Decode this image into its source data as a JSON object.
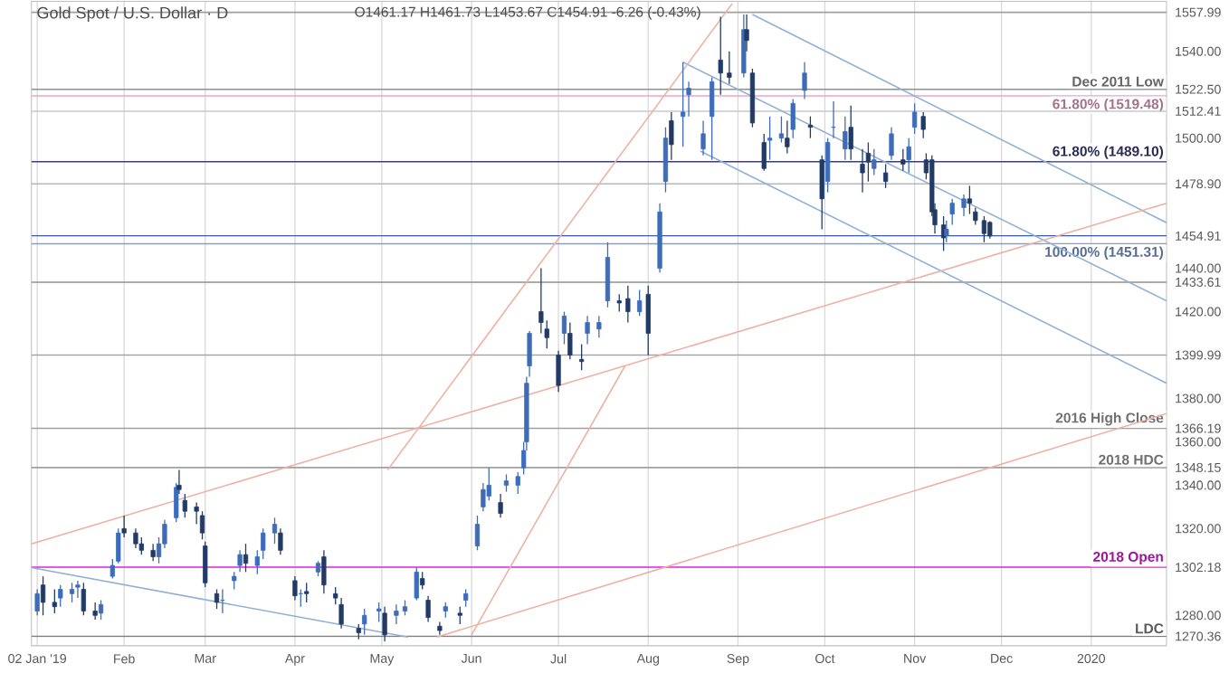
{
  "chart_data": {
    "type": "candlestick",
    "title": "Gold Spot / U.S. Dollar · D",
    "subtitle": "O1461.17 H1461.73 L1453.67 C1454.91 -6.26 (-0.43%)",
    "xlim": [
      "2018-12-31",
      "2020-01-27"
    ],
    "ylim": [
      1266,
      1563
    ],
    "xticks": [
      {
        "value": "2019-01-02",
        "label": "02 Jan '19"
      },
      {
        "value": "2019-02-01",
        "label": "Feb"
      },
      {
        "value": "2019-03-01",
        "label": "Mar"
      },
      {
        "value": "2019-04-01",
        "label": "Apr"
      },
      {
        "value": "2019-05-01",
        "label": "May"
      },
      {
        "value": "2019-06-01",
        "label": "Jun"
      },
      {
        "value": "2019-07-01",
        "label": "Jul"
      },
      {
        "value": "2019-08-01",
        "label": "Aug"
      },
      {
        "value": "2019-09-01",
        "label": "Sep"
      },
      {
        "value": "2019-10-01",
        "label": "Oct"
      },
      {
        "value": "2019-11-01",
        "label": "Nov"
      },
      {
        "value": "2019-12-01",
        "label": "Dec"
      },
      {
        "value": "2020-01-01",
        "label": "2020"
      }
    ],
    "yticks": [
      {
        "value": 1557.99,
        "label": "1557.99"
      },
      {
        "value": 1540,
        "label": "1540.00"
      },
      {
        "value": 1522.5,
        "label": "1522.50"
      },
      {
        "value": 1512.41,
        "label": "1512.41"
      },
      {
        "value": 1500,
        "label": "1500.00"
      },
      {
        "value": 1478.9,
        "label": "1478.90"
      },
      {
        "value": 1454.91,
        "label": "1454.91"
      },
      {
        "value": 1440,
        "label": "1440.00"
      },
      {
        "value": 1433.61,
        "label": "1433.61"
      },
      {
        "value": 1420,
        "label": "1420.00"
      },
      {
        "value": 1399.99,
        "label": "1399.99"
      },
      {
        "value": 1380,
        "label": "1380.00"
      },
      {
        "value": 1366.19,
        "label": "1366.19"
      },
      {
        "value": 1360,
        "label": "1360.00"
      },
      {
        "value": 1348.15,
        "label": "1348.15"
      },
      {
        "value": 1340,
        "label": "1340.00"
      },
      {
        "value": 1320,
        "label": "1320.00"
      },
      {
        "value": 1302.18,
        "label": "1302.18"
      },
      {
        "value": 1280,
        "label": "1280.00"
      },
      {
        "value": 1270.36,
        "label": "1270.36"
      }
    ],
    "grid": "x",
    "ref_lines": [
      {
        "axis": "y",
        "value": 1557.99,
        "color": "#a0a0a0"
      },
      {
        "axis": "y",
        "value": 1522.5,
        "label": "Dec 2011 Low",
        "color": "#909090"
      },
      {
        "axis": "y",
        "value": 1519.48,
        "label": "61.80% (1519.48)",
        "color": "#e9a6c4"
      },
      {
        "axis": "y",
        "value": 1512.41,
        "color": "#c8c8c8"
      },
      {
        "axis": "y",
        "value": 1489.1,
        "label": "61.80% (1489.10)",
        "color": "#3e3e78"
      },
      {
        "axis": "y",
        "value": 1478.9,
        "color": "#b8b8b8"
      },
      {
        "axis": "y",
        "value": 1454.91,
        "color": "#3c5aa8"
      },
      {
        "axis": "y",
        "value": 1451.31,
        "label": "100.00% (1451.31)",
        "color": "#7f9fd0"
      },
      {
        "axis": "y",
        "value": 1433.61,
        "color": "#909090"
      },
      {
        "axis": "y",
        "value": 1399.99,
        "color": "#a0a0a0"
      },
      {
        "axis": "y",
        "value": 1366.19,
        "label": "2016 High Close",
        "color": "#a0a0a0"
      },
      {
        "axis": "y",
        "value": 1348.15,
        "label": "2018 HDC",
        "color": "#a0a0a0"
      },
      {
        "axis": "y",
        "value": 1302.18,
        "label": "2018 Open",
        "color": "#e020e0"
      },
      {
        "axis": "y",
        "value": 1270.36,
        "label": "LDC",
        "color": "#808080"
      }
    ],
    "series": [
      {
        "type": "line",
        "color": "#8fb0d6",
        "x": [
          "2019-09-06",
          "2020-01-27"
        ],
        "values": [
          1557,
          1461
        ]
      },
      {
        "type": "line",
        "color": "#8fb0d6",
        "x": [
          "2019-08-13",
          "2020-01-27"
        ],
        "values": [
          1535,
          1425
        ]
      },
      {
        "type": "line",
        "color": "#8fb0d6",
        "x": [
          "2019-08-19",
          "2020-01-27"
        ],
        "values": [
          1494,
          1387
        ]
      },
      {
        "type": "line",
        "color": "#8fb0d6",
        "x": [
          "2018-12-31",
          "2019-05-10"
        ],
        "values": [
          1302,
          1270
        ]
      },
      {
        "type": "line",
        "color": "#eeb0a0",
        "x": [
          "2018-12-31",
          "2020-01-27"
        ],
        "values": [
          1313,
          1470
        ]
      },
      {
        "type": "line",
        "color": "#eeb0a0",
        "x": [
          "2019-05-20",
          "2020-01-27"
        ],
        "values": [
          1270,
          1373
        ]
      },
      {
        "type": "line",
        "color": "#eeb0a0",
        "x": [
          "2019-05-03",
          "2019-08-30"
        ],
        "values": [
          1347,
          1562
        ]
      },
      {
        "type": "line",
        "color": "#eeb0a0",
        "x": [
          "2019-06-01",
          "2019-07-24"
        ],
        "values": [
          1271,
          1395
        ]
      },
      {
        "colors": [
          "#3d6cb9",
          "#223b66",
          "#223b66",
          "#3d6cb9",
          "#3d6cb9",
          "#3d6cb9",
          "#223b66",
          "#223b66",
          "#3d6cb9",
          "#3d6cb9",
          "#3d6cb9",
          "#223b66",
          "#223b66",
          "#223b66",
          "#223b66",
          "#3d6cb9",
          "#3d6cb9",
          "#3d6cb9",
          "#223b66",
          "#223b66",
          "#223b66",
          "#223b66",
          "#223b66",
          "#223b66",
          "#3d6cb9",
          "#3d6cb9",
          "#3d6cb9",
          "#223b66",
          "#3d6cb9",
          "#3d6cb9",
          "#3d6cb9",
          "#223b66",
          "#223b66",
          "#3d6cb9",
          "#223b66",
          "#3d6cb9",
          "#223b66",
          "#223b66",
          "#223b66",
          "#223b66",
          "#3d6cb9",
          "#3d6cb9",
          "#223b66",
          "#3d6cb9",
          "#3d6cb9",
          "#3d6cb9",
          "#223b66",
          "#223b66",
          "#223b66",
          "#3d6cb9",
          "#223b66",
          "#3d6cb9",
          "#3d6cb9",
          "#3d6cb9",
          "#3d6cb9",
          "#223b66",
          "#3d6cb9",
          "#3d6cb9",
          "#3d6cb9",
          "#3d6cb9",
          "#3d6cb9",
          "#223b66",
          "#223b66",
          "#223b66",
          "#3d6cb9",
          "#223b66",
          "#223b66",
          "#3d6cb9",
          "#3d6cb9",
          "#3d6cb9",
          "#223b66",
          "#223b66",
          "#3d6cb9",
          "#223b66",
          "#3d6cb9",
          "#3d6cb9",
          "#223b66",
          "#3d6cb9",
          "#3d6cb9",
          "#3d6cb9",
          "#3d6cb9",
          "#223b66",
          "#223b66",
          "#3d6cb9",
          "#223b66",
          "#223b66",
          "#223b66",
          "#3d6cb9",
          "#3d6cb9",
          "#223b66",
          "#3d6cb9",
          "#3d6cb9",
          "#223b66",
          "#223b66",
          "#3d6cb9",
          "#3d6cb9",
          "#3d6cb9",
          "#223b66",
          "#223b66",
          "#223b66",
          "#3d6cb9",
          "#223b66",
          "#3d6cb9",
          "#223b66",
          "#3d6cb9",
          "#3d6cb9",
          "#223b66",
          "#223b66",
          "#223b66",
          "#223b66",
          "#223b66",
          "#3d6cb9",
          "#3d6cb9",
          "#3d6cb9",
          "#223b66",
          "#223b66",
          "#223b66",
          "#223b66"
        ],
        "x": [
          "2019-01-02",
          "2019-01-04",
          "2019-01-08",
          "2019-01-10",
          "2019-01-14",
          "2019-01-16",
          "2019-01-18",
          "2019-01-22",
          "2019-01-24",
          "2019-01-28",
          "2019-01-30",
          "2019-02-01",
          "2019-02-05",
          "2019-02-07",
          "2019-02-11",
          "2019-02-13",
          "2019-02-15",
          "2019-02-19",
          "2019-02-20",
          "2019-02-22",
          "2019-02-26",
          "2019-02-28",
          "2019-03-01",
          "2019-03-05",
          "2019-03-07",
          "2019-03-11",
          "2019-03-13",
          "2019-03-15",
          "2019-03-19",
          "2019-03-21",
          "2019-03-25",
          "2019-03-27",
          "2019-04-01",
          "2019-04-03",
          "2019-04-05",
          "2019-04-09",
          "2019-04-11",
          "2019-04-15",
          "2019-04-17",
          "2019-04-23",
          "2019-04-25",
          "2019-04-30",
          "2019-05-02",
          "2019-05-06",
          "2019-05-09",
          "2019-05-13",
          "2019-05-15",
          "2019-05-17",
          "2019-05-21",
          "2019-05-23",
          "2019-05-28",
          "2019-05-30",
          "2019-06-03",
          "2019-06-05",
          "2019-06-07",
          "2019-06-11",
          "2019-06-13",
          "2019-06-17",
          "2019-06-19",
          "2019-06-20",
          "2019-06-21",
          "2019-06-25",
          "2019-06-27",
          "2019-07-01",
          "2019-07-03",
          "2019-07-05",
          "2019-07-09",
          "2019-07-11",
          "2019-07-15",
          "2019-07-18",
          "2019-07-22",
          "2019-07-25",
          "2019-07-29",
          "2019-08-01",
          "2019-08-05",
          "2019-08-07",
          "2019-08-09",
          "2019-08-13",
          "2019-08-15",
          "2019-08-20",
          "2019-08-23",
          "2019-08-26",
          "2019-08-29",
          "2019-09-03",
          "2019-09-04",
          "2019-09-06",
          "2019-09-10",
          "2019-09-12",
          "2019-09-16",
          "2019-09-18",
          "2019-09-20",
          "2019-09-24",
          "2019-09-26",
          "2019-09-30",
          "2019-10-02",
          "2019-10-04",
          "2019-10-08",
          "2019-10-10",
          "2019-10-14",
          "2019-10-16",
          "2019-10-18",
          "2019-10-22",
          "2019-10-24",
          "2019-10-28",
          "2019-10-30",
          "2019-11-01",
          "2019-11-04",
          "2019-11-05",
          "2019-11-07",
          "2019-11-08",
          "2019-11-11",
          "2019-11-12",
          "2019-11-14",
          "2019-11-18",
          "2019-11-20",
          "2019-11-22",
          "2019-11-25",
          "2019-11-27"
        ],
        "ohlc": [
          [
            1282,
            1292,
            1280,
            1290
          ],
          [
            1294,
            1298,
            1280,
            1286
          ],
          [
            1286,
            1292,
            1281,
            1284
          ],
          [
            1288,
            1294,
            1284,
            1292
          ],
          [
            1290,
            1295,
            1286,
            1292
          ],
          [
            1293,
            1296,
            1288,
            1294
          ],
          [
            1292,
            1295,
            1280,
            1282
          ],
          [
            1282,
            1286,
            1278,
            1280
          ],
          [
            1281,
            1287,
            1278,
            1285
          ],
          [
            1298,
            1306,
            1297,
            1303
          ],
          [
            1305,
            1320,
            1304,
            1318
          ],
          [
            1320,
            1326,
            1316,
            1318
          ],
          [
            1318,
            1320,
            1311,
            1313
          ],
          [
            1313,
            1316,
            1308,
            1310
          ],
          [
            1310,
            1313,
            1305,
            1307
          ],
          [
            1307,
            1316,
            1304,
            1313
          ],
          [
            1313,
            1324,
            1311,
            1322
          ],
          [
            1325,
            1341,
            1323,
            1339
          ],
          [
            1340,
            1347,
            1336,
            1338
          ],
          [
            1333,
            1336,
            1325,
            1328
          ],
          [
            1330,
            1332,
            1322,
            1328
          ],
          [
            1326,
            1328,
            1315,
            1318
          ],
          [
            1312,
            1314,
            1293,
            1295
          ],
          [
            1290,
            1292,
            1283,
            1286
          ],
          [
            1287,
            1292,
            1281,
            1287
          ],
          [
            1296,
            1300,
            1292,
            1298
          ],
          [
            1303,
            1310,
            1300,
            1308
          ],
          [
            1308,
            1313,
            1300,
            1304
          ],
          [
            1303,
            1310,
            1299,
            1307
          ],
          [
            1310,
            1320,
            1306,
            1318
          ],
          [
            1318,
            1325,
            1313,
            1322
          ],
          [
            1318,
            1320,
            1308,
            1310
          ],
          [
            1296,
            1298,
            1287,
            1289
          ],
          [
            1290,
            1292,
            1284,
            1290
          ],
          [
            1291,
            1295,
            1286,
            1290
          ],
          [
            1300,
            1305,
            1298,
            1304
          ],
          [
            1307,
            1310,
            1290,
            1294
          ],
          [
            1290,
            1293,
            1285,
            1288
          ],
          [
            1285,
            1288,
            1274,
            1276
          ],
          [
            1274,
            1276,
            1269,
            1272
          ],
          [
            1276,
            1283,
            1271,
            1280
          ],
          [
            1282,
            1286,
            1277,
            1283
          ],
          [
            1281,
            1284,
            1268,
            1271
          ],
          [
            1280,
            1285,
            1276,
            1282
          ],
          [
            1282,
            1287,
            1280,
            1284
          ],
          [
            1288,
            1302,
            1287,
            1300
          ],
          [
            1297,
            1300,
            1292,
            1294
          ],
          [
            1287,
            1289,
            1277,
            1279
          ],
          [
            1275,
            1277,
            1271,
            1273
          ],
          [
            1282,
            1286,
            1279,
            1284
          ],
          [
            1281,
            1284,
            1276,
            1280
          ],
          [
            1287,
            1292,
            1284,
            1290
          ],
          [
            1312,
            1326,
            1310,
            1322
          ],
          [
            1330,
            1341,
            1328,
            1338
          ],
          [
            1335,
            1348,
            1333,
            1340
          ],
          [
            1332,
            1336,
            1325,
            1327
          ],
          [
            1340,
            1345,
            1337,
            1342
          ],
          [
            1340,
            1346,
            1336,
            1344
          ],
          [
            1348,
            1360,
            1345,
            1356
          ],
          [
            1360,
            1390,
            1356,
            1387
          ],
          [
            1395,
            1411,
            1390,
            1410
          ],
          [
            1420,
            1440,
            1410,
            1415
          ],
          [
            1412,
            1416,
            1403,
            1408
          ],
          [
            1400,
            1402,
            1383,
            1386
          ],
          [
            1410,
            1420,
            1405,
            1418
          ],
          [
            1410,
            1415,
            1398,
            1400
          ],
          [
            1398,
            1405,
            1393,
            1397
          ],
          [
            1410,
            1418,
            1405,
            1415
          ],
          [
            1412,
            1418,
            1408,
            1415
          ],
          [
            1425,
            1452,
            1422,
            1445
          ],
          [
            1425,
            1428,
            1420,
            1424
          ],
          [
            1426,
            1432,
            1415,
            1420
          ],
          [
            1420,
            1430,
            1418,
            1425
          ],
          [
            1428,
            1432,
            1400,
            1410
          ],
          [
            1440,
            1470,
            1438,
            1466
          ],
          [
            1480,
            1505,
            1475,
            1500
          ],
          [
            1508,
            1512,
            1490,
            1497
          ],
          [
            1510,
            1535,
            1496,
            1512
          ],
          [
            1520,
            1526,
            1510,
            1523
          ],
          [
            1495,
            1508,
            1492,
            1502
          ],
          [
            1510,
            1528,
            1490,
            1526
          ],
          [
            1536,
            1556,
            1520,
            1530
          ],
          [
            1530,
            1540,
            1525,
            1528
          ],
          [
            1530,
            1557,
            1528,
            1550
          ],
          [
            1550,
            1557,
            1540,
            1545
          ],
          [
            1530,
            1532,
            1505,
            1507
          ],
          [
            1498,
            1502,
            1485,
            1486
          ],
          [
            1499,
            1510,
            1490,
            1500
          ],
          [
            1500,
            1510,
            1498,
            1502
          ],
          [
            1500,
            1508,
            1493,
            1496
          ],
          [
            1504,
            1518,
            1500,
            1516
          ],
          [
            1522,
            1535,
            1518,
            1530
          ],
          [
            1506,
            1510,
            1500,
            1505
          ],
          [
            1490,
            1492,
            1458,
            1472
          ],
          [
            1480,
            1500,
            1475,
            1498
          ],
          [
            1505,
            1517,
            1500,
            1505
          ],
          [
            1495,
            1510,
            1490,
            1503
          ],
          [
            1505,
            1515,
            1490,
            1495
          ],
          [
            1488,
            1495,
            1475,
            1484
          ],
          [
            1493,
            1498,
            1480,
            1489
          ],
          [
            1486,
            1495,
            1483,
            1490
          ],
          [
            1484,
            1488,
            1477,
            1480
          ],
          [
            1492,
            1505,
            1490,
            1502
          ],
          [
            1490,
            1495,
            1485,
            1488
          ],
          [
            1490,
            1500,
            1484,
            1496
          ],
          [
            1505,
            1516,
            1502,
            1512
          ],
          [
            1510,
            1512,
            1500,
            1504
          ],
          [
            1490,
            1493,
            1481,
            1484
          ],
          [
            1490,
            1492,
            1464,
            1466
          ],
          [
            1467,
            1470,
            1456,
            1460
          ],
          [
            1460,
            1464,
            1448,
            1454
          ],
          [
            1455,
            1462,
            1452,
            1458
          ],
          [
            1465,
            1472,
            1460,
            1470
          ],
          [
            1468,
            1474,
            1464,
            1472
          ],
          [
            1472,
            1478,
            1465,
            1470
          ],
          [
            1466,
            1468,
            1460,
            1462
          ],
          [
            1462,
            1464,
            1452,
            1456
          ],
          [
            1461.17,
            1461.73,
            1453.67,
            1454.91
          ]
        ]
      }
    ]
  }
}
